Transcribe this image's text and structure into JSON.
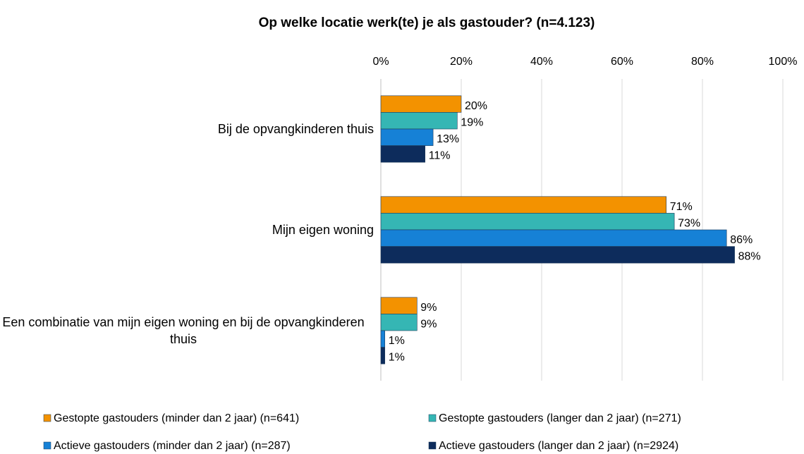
{
  "chart_data": {
    "type": "hbar",
    "title": "Op welke locatie werk(te) je als gastouder? (n=4.123)",
    "categories": [
      "Bij de opvangkinderen thuis",
      "Mijn eigen woning",
      "Een combinatie van mijn eigen woning en bij de opvangkinderen thuis"
    ],
    "series": [
      {
        "name": "Gestopte gastouders (minder dan 2 jaar) (n=641)",
        "color": "#f39200",
        "values": [
          20,
          71,
          9
        ],
        "value_labels": [
          "20%",
          "71%",
          "9%"
        ]
      },
      {
        "name": "Gestopte gastouders (langer dan 2 jaar) (n=271)",
        "color": "#35b6b4",
        "values": [
          19,
          73,
          9
        ],
        "value_labels": [
          "19%",
          "73%",
          "9%"
        ]
      },
      {
        "name": "Actieve gastouders (minder dan 2 jaar) (n=287)",
        "color": "#1681d6",
        "values": [
          13,
          86,
          1
        ],
        "value_labels": [
          "13%",
          "86%",
          "1%"
        ]
      },
      {
        "name": "Actieve gastouders (langer dan 2 jaar) (n=2924)",
        "color": "#0d2c5c",
        "values": [
          11,
          88,
          1
        ],
        "value_labels": [
          "11%",
          "88%",
          "1%"
        ]
      }
    ],
    "xlim": [
      0,
      100
    ],
    "xticks": [
      {
        "value": 0,
        "label": "0%"
      },
      {
        "value": 20,
        "label": "20%"
      },
      {
        "value": 40,
        "label": "40%"
      },
      {
        "value": 60,
        "label": "60%"
      },
      {
        "value": 80,
        "label": "80%"
      },
      {
        "value": 100,
        "label": "100%"
      }
    ],
    "grid": true,
    "legend": "bottom"
  }
}
